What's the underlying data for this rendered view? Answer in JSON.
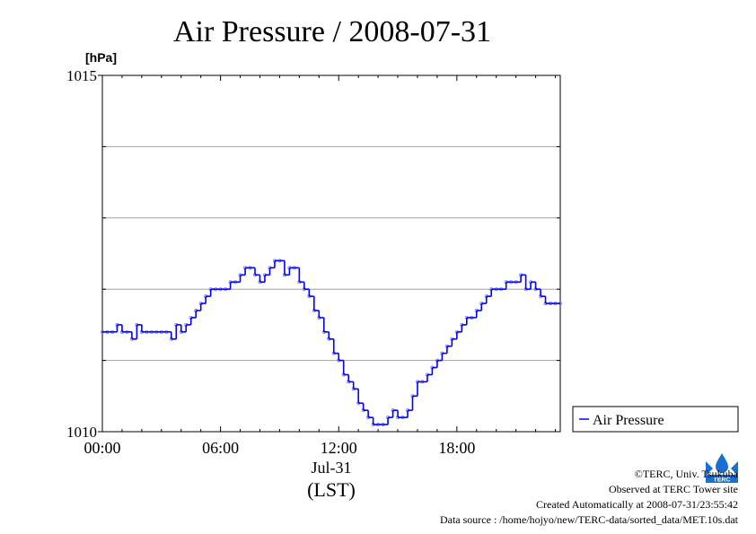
{
  "chart_data": {
    "type": "line",
    "title": "Air Pressure / 2008-07-31",
    "ylabel": "[hPa]",
    "ylim": [
      1010,
      1015
    ],
    "y_ticks": [
      "1015",
      "1010"
    ],
    "y_grid": [
      1011,
      1012,
      1013,
      1014
    ],
    "xlim": [
      0,
      23.25
    ],
    "x_ticks": [
      "00:00",
      "06:00",
      "12:00",
      "18:00"
    ],
    "x_tick_hours": [
      0,
      6,
      12,
      18
    ],
    "date_label": "Jul-31",
    "xlabel": "(LST)",
    "grid": true,
    "legend_position": "right",
    "series": [
      {
        "name": "Air Pressure",
        "color": "#0000ff",
        "marker_color": "#7a7aff",
        "x": [
          0.0,
          0.25,
          0.5,
          0.75,
          1.0,
          1.25,
          1.5,
          1.75,
          2.0,
          2.25,
          2.5,
          2.75,
          3.0,
          3.25,
          3.5,
          3.75,
          4.0,
          4.25,
          4.5,
          4.75,
          5.0,
          5.25,
          5.5,
          5.75,
          6.0,
          6.25,
          6.5,
          6.75,
          7.0,
          7.25,
          7.5,
          7.75,
          8.0,
          8.25,
          8.5,
          8.75,
          9.0,
          9.25,
          9.5,
          9.75,
          10.0,
          10.25,
          10.5,
          10.75,
          11.0,
          11.25,
          11.5,
          11.75,
          12.0,
          12.25,
          12.5,
          12.75,
          13.0,
          13.25,
          13.5,
          13.75,
          14.0,
          14.25,
          14.5,
          14.75,
          15.0,
          15.25,
          15.5,
          15.75,
          16.0,
          16.25,
          16.5,
          16.75,
          17.0,
          17.25,
          17.5,
          17.75,
          18.0,
          18.25,
          18.5,
          18.75,
          19.0,
          19.25,
          19.5,
          19.75,
          20.0,
          20.25,
          20.5,
          20.75,
          21.0,
          21.25,
          21.5,
          21.75,
          22.0,
          22.25,
          22.5,
          22.75,
          23.0,
          23.25
        ],
        "values": [
          1011.4,
          1011.4,
          1011.4,
          1011.5,
          1011.4,
          1011.4,
          1011.3,
          1011.5,
          1011.4,
          1011.4,
          1011.4,
          1011.4,
          1011.4,
          1011.4,
          1011.3,
          1011.5,
          1011.4,
          1011.5,
          1011.6,
          1011.7,
          1011.8,
          1011.9,
          1012.0,
          1012.0,
          1012.0,
          1012.0,
          1012.1,
          1012.1,
          1012.2,
          1012.3,
          1012.3,
          1012.2,
          1012.1,
          1012.2,
          1012.3,
          1012.4,
          1012.4,
          1012.2,
          1012.3,
          1012.3,
          1012.1,
          1012.0,
          1011.9,
          1011.7,
          1011.6,
          1011.4,
          1011.3,
          1011.1,
          1011.0,
          1010.8,
          1010.7,
          1010.6,
          1010.4,
          1010.3,
          1010.2,
          1010.1,
          1010.1,
          1010.1,
          1010.2,
          1010.3,
          1010.2,
          1010.2,
          1010.3,
          1010.5,
          1010.7,
          1010.7,
          1010.8,
          1010.9,
          1011.0,
          1011.1,
          1011.2,
          1011.3,
          1011.4,
          1011.5,
          1011.6,
          1011.6,
          1011.7,
          1011.8,
          1011.9,
          1012.0,
          1012.0,
          1012.0,
          1012.1,
          1012.1,
          1012.1,
          1012.2,
          1012.0,
          1012.1,
          1012.0,
          1011.9,
          1011.8,
          1011.8,
          1011.8,
          1011.8
        ]
      }
    ]
  },
  "legend": {
    "label": "Air Pressure"
  },
  "credits": {
    "copyright": "©TERC, Univ. Tsukuba",
    "observed": "Observed at TERC Tower site",
    "created": "Created Automatically at 2008-07-31/23:55:42",
    "source": "Data source : /home/hojyo/new/TERC-data/sorted_data/MET.10s.dat"
  },
  "logo": {
    "text": "TERC"
  }
}
